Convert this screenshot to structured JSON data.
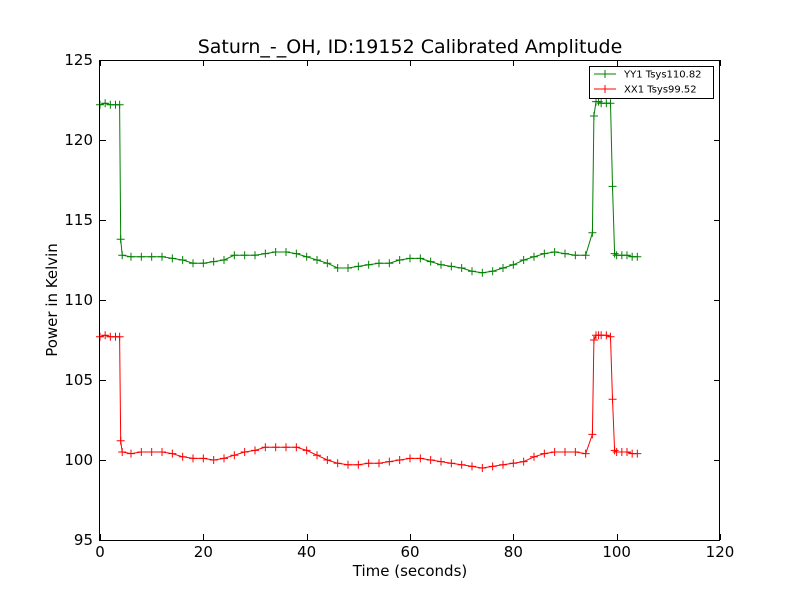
{
  "chart_data": {
    "type": "line",
    "title": "Saturn_-_OH, ID:19152 Calibrated Amplitude",
    "xlabel": "Time (seconds)",
    "ylabel": "Power in Kelvin",
    "xlim": [
      0,
      120
    ],
    "ylim": [
      95,
      125
    ],
    "xticks": [
      0,
      20,
      40,
      60,
      80,
      100,
      120
    ],
    "yticks": [
      95,
      100,
      105,
      110,
      115,
      120,
      125
    ],
    "grid": false,
    "legend_position": "top-right",
    "series": [
      {
        "name": "YY1 Tsys110.82",
        "color": "#008000",
        "x": [
          0,
          1,
          2,
          3,
          3.8,
          4,
          4.3,
          6,
          8,
          10,
          12,
          14,
          16,
          18,
          20,
          22,
          24,
          26,
          28,
          30,
          32,
          34,
          36,
          38,
          40,
          42,
          44,
          46,
          48,
          50,
          52,
          54,
          56,
          58,
          60,
          62,
          64,
          66,
          68,
          70,
          72,
          74,
          76,
          78,
          80,
          82,
          84,
          86,
          88,
          90,
          92,
          94,
          95.3,
          95.6,
          96,
          96.5,
          97,
          98,
          98.8,
          99.2,
          99.6,
          100,
          101,
          102,
          103,
          104
        ],
        "y": [
          122.2,
          122.3,
          122.2,
          122.2,
          122.2,
          113.8,
          112.8,
          112.7,
          112.7,
          112.7,
          112.7,
          112.6,
          112.5,
          112.3,
          112.3,
          112.4,
          112.5,
          112.8,
          112.8,
          112.8,
          112.9,
          113.0,
          113.0,
          112.9,
          112.7,
          112.5,
          112.3,
          112.0,
          112.0,
          112.1,
          112.2,
          112.3,
          112.3,
          112.5,
          112.6,
          112.6,
          112.4,
          112.2,
          112.1,
          112.0,
          111.8,
          111.7,
          111.8,
          112.0,
          112.2,
          112.5,
          112.7,
          112.9,
          113.0,
          112.9,
          112.8,
          112.8,
          114.2,
          121.5,
          122.4,
          122.4,
          122.3,
          122.3,
          122.3,
          117.1,
          112.9,
          112.8,
          112.8,
          112.8,
          112.7,
          112.7
        ]
      },
      {
        "name": "XX1 Tsys99.52",
        "color": "#ff0000",
        "x": [
          0,
          1,
          2,
          3,
          3.8,
          4,
          4.3,
          6,
          8,
          10,
          12,
          14,
          16,
          18,
          20,
          22,
          24,
          26,
          28,
          30,
          32,
          34,
          36,
          38,
          40,
          42,
          44,
          46,
          48,
          50,
          52,
          54,
          56,
          58,
          60,
          62,
          64,
          66,
          68,
          70,
          72,
          74,
          76,
          78,
          80,
          82,
          84,
          86,
          88,
          90,
          92,
          94,
          95.3,
          95.6,
          96,
          96.5,
          97,
          98,
          98.8,
          99.2,
          99.6,
          100,
          101,
          102,
          103,
          104
        ],
        "y": [
          107.7,
          107.8,
          107.7,
          107.7,
          107.7,
          101.2,
          100.5,
          100.4,
          100.5,
          100.5,
          100.5,
          100.4,
          100.2,
          100.1,
          100.1,
          100.0,
          100.1,
          100.3,
          100.5,
          100.6,
          100.8,
          100.8,
          100.8,
          100.8,
          100.6,
          100.3,
          100.0,
          99.8,
          99.7,
          99.7,
          99.8,
          99.8,
          99.9,
          100.0,
          100.1,
          100.1,
          100.0,
          99.9,
          99.8,
          99.7,
          99.6,
          99.5,
          99.6,
          99.7,
          99.8,
          99.9,
          100.2,
          100.4,
          100.5,
          100.5,
          100.5,
          100.4,
          101.6,
          107.5,
          107.8,
          107.8,
          107.8,
          107.8,
          107.7,
          103.8,
          100.6,
          100.5,
          100.5,
          100.5,
          100.4,
          100.4
        ]
      }
    ]
  }
}
